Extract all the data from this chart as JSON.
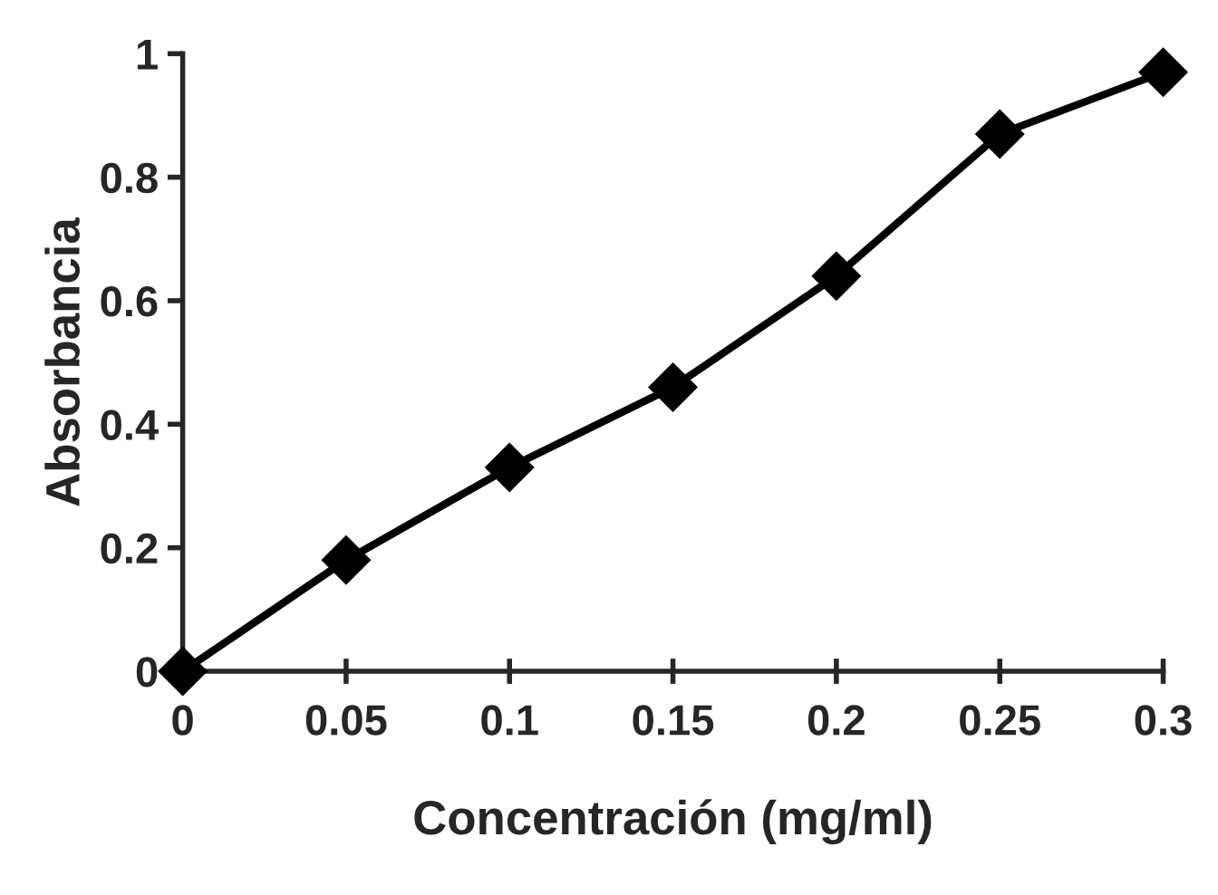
{
  "chart_data": {
    "type": "line",
    "xlabel": "Concentración (mg/ml)",
    "ylabel": "Absorbancia",
    "x": [
      0,
      0.05,
      0.1,
      0.15,
      0.2,
      0.25,
      0.3
    ],
    "series": [
      {
        "color": "#000000",
        "values": [
          0,
          0.18,
          0.33,
          0.46,
          0.64,
          0.87,
          0.97
        ]
      }
    ],
    "xlim": [
      0,
      0.3
    ],
    "ylim": [
      0,
      1
    ],
    "xticks": [
      0,
      0.05,
      0.1,
      0.15,
      0.2,
      0.25,
      0.3
    ],
    "yticks": [
      0,
      0.2,
      0.4,
      0.6,
      0.8,
      1
    ],
    "marker": "diamond",
    "line_style": "solid",
    "grid": false,
    "legend": false
  }
}
